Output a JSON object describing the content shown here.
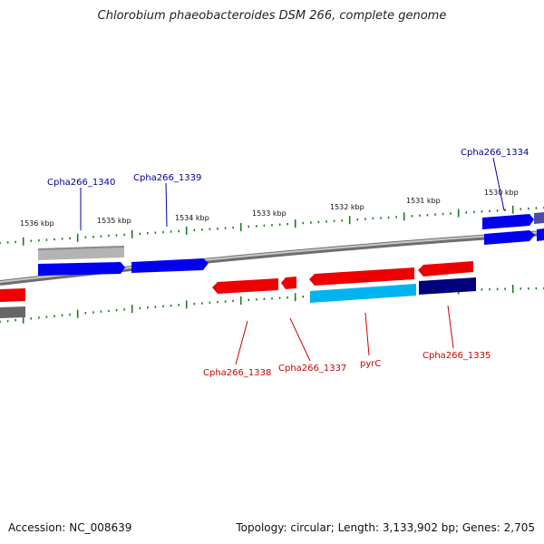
{
  "title": "Chlorobium phaeobacteroides DSM 266, complete genome",
  "footer": {
    "accession": "Accession: NC_008639",
    "summary": "Topology: circular; Length: 3,133,902 bp; Genes: 2,705"
  },
  "scale_labels": [
    "1536 kbp",
    "1535 kbp",
    "1534 kbp",
    "1533 kbp",
    "1532 kbp",
    "1531 kbp",
    "1530 kbp"
  ],
  "gene_labels": {
    "forward": [
      "Cpha266_1340",
      "Cpha266_1339",
      "Cpha266_1334"
    ],
    "reverse": [
      "Cpha266_1338",
      "Cpha266_1337",
      "pyrC",
      "Cpha266_1335"
    ]
  },
  "colors": {
    "forward_strand": "#0000ee",
    "forward_label": "#00009a",
    "reverse_strand": "#ee0000",
    "reverse_label": "#cc0000",
    "cyan_gene": "#00b4f0",
    "navy_gene": "#00007a",
    "gray_gene": "#b4b4b4",
    "dark_gray_gene": "#666666",
    "purple_gene": "#4c4ca8",
    "backbone": "#8c8c8c",
    "tick": "#1e7a1e"
  }
}
